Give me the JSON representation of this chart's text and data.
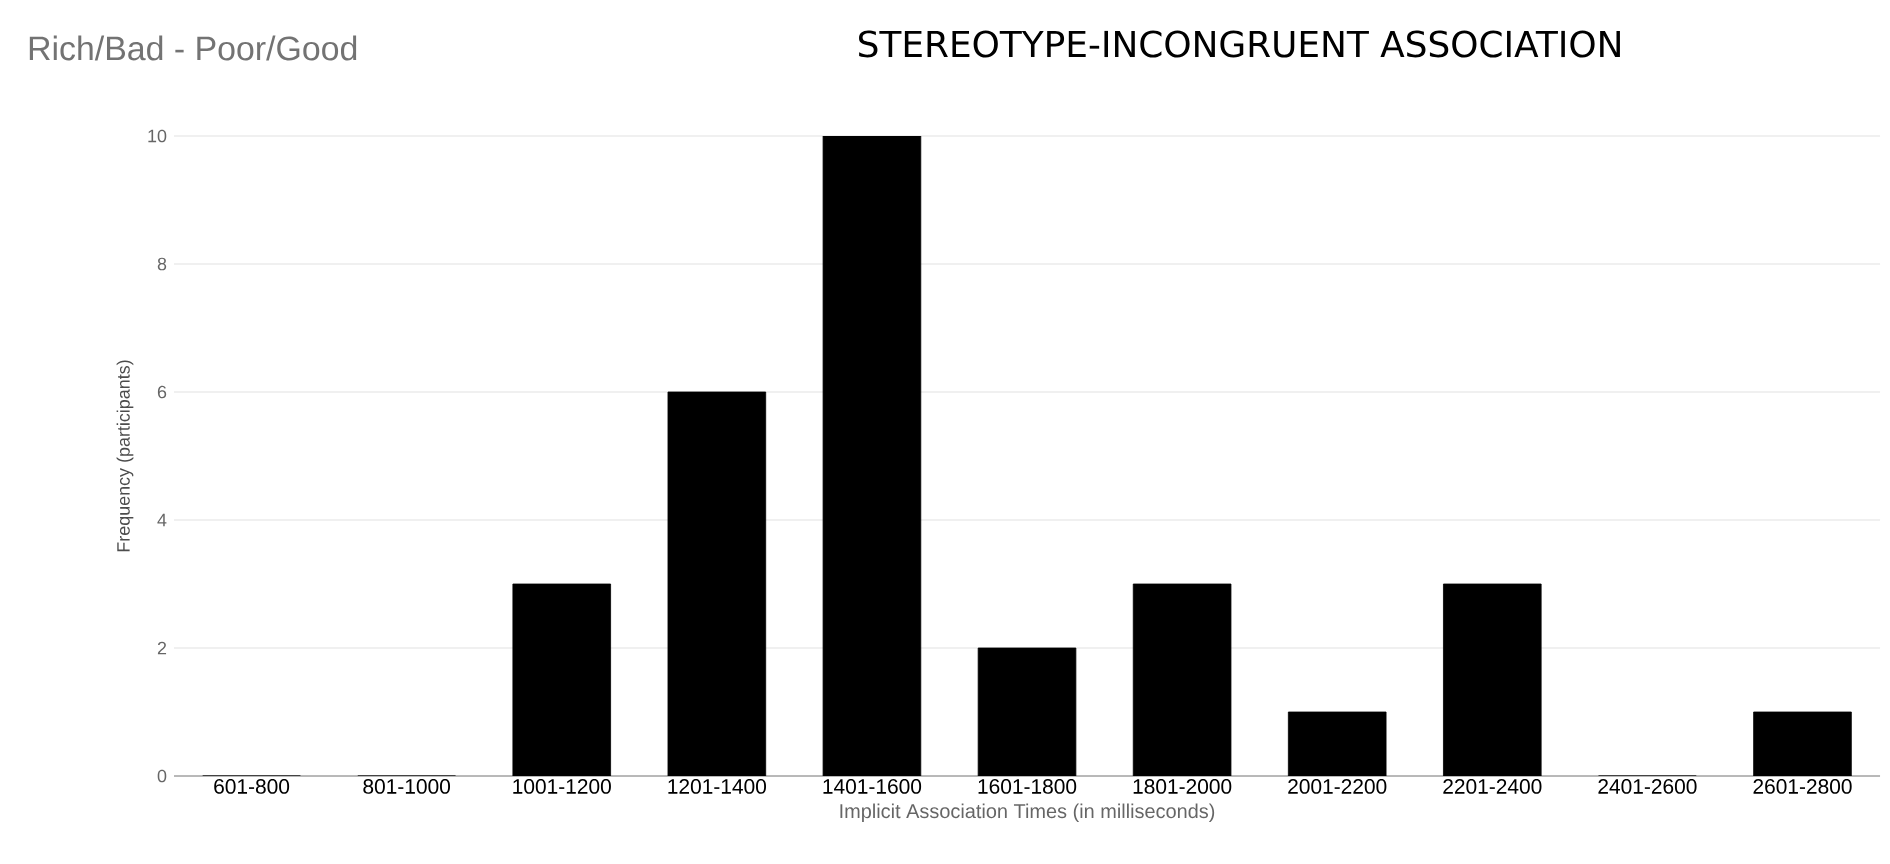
{
  "chart_data": {
    "type": "bar",
    "title": "Rich/Bad - Poor/Good",
    "subtitle": "STEREOTYPE-INCONGRUENT ASSOCIATION",
    "xlabel": "Implicit Association Times (in milliseconds)",
    "ylabel": "Frequency (participants)",
    "categories": [
      "601-800",
      "801-1000",
      "1001-1200",
      "1201-1400",
      "1401-1600",
      "1601-1800",
      "1801-2000",
      "2001-2200",
      "2201-2400",
      "2401-2600",
      "2601-2800"
    ],
    "values": [
      0,
      0,
      3,
      6,
      10,
      2,
      3,
      1,
      3,
      0,
      1
    ],
    "color": "#000000",
    "ylim": [
      0,
      10
    ],
    "yticks": [
      0,
      2,
      4,
      6,
      8,
      10
    ],
    "grid": "y"
  }
}
